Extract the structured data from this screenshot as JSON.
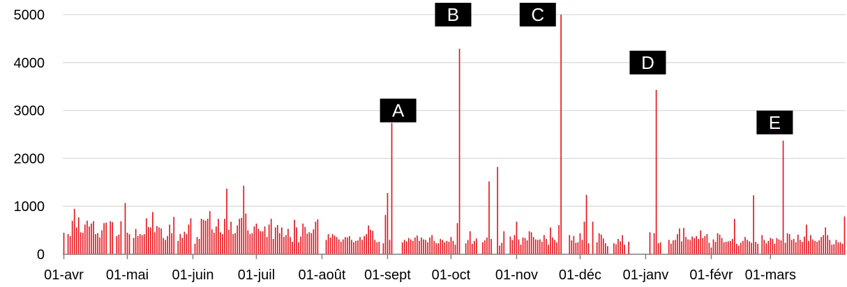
{
  "chart_data": {
    "type": "bar",
    "title": "",
    "xlabel": "",
    "ylabel": "",
    "ylim": [
      0,
      5000
    ],
    "y_ticks": [
      0,
      1000,
      2000,
      3000,
      4000,
      5000
    ],
    "x_tick_labels": [
      "01-avr",
      "01-mai",
      "01-juin",
      "01-juil",
      "01-août",
      "01-sept",
      "01-oct",
      "01-nov",
      "01-déc",
      "01-janv",
      "01-févr",
      "01-mars"
    ],
    "x_tick_day_index": [
      0,
      30,
      61,
      91,
      122,
      153,
      183,
      214,
      244,
      275,
      306,
      334
    ],
    "grid": "horizontal",
    "bar_color": "#e8141b",
    "annotation_color": "#000000",
    "values": [
      450,
      0,
      420,
      380,
      700,
      950,
      560,
      770,
      460,
      450,
      620,
      700,
      580,
      640,
      690,
      420,
      440,
      350,
      500,
      650,
      660,
      0,
      690,
      670,
      0,
      380,
      410,
      690,
      0,
      1070,
      450,
      420,
      0,
      340,
      530,
      380,
      420,
      400,
      420,
      750,
      570,
      560,
      880,
      460,
      590,
      560,
      540,
      340,
      300,
      380,
      620,
      440,
      780,
      0,
      280,
      420,
      340,
      470,
      420,
      620,
      750,
      0,
      220,
      360,
      320,
      740,
      720,
      700,
      740,
      900,
      520,
      450,
      580,
      740,
      460,
      420,
      740,
      1370,
      510,
      680,
      420,
      440,
      600,
      740,
      760,
      1430,
      850,
      500,
      420,
      440,
      580,
      640,
      530,
      480,
      480,
      580,
      360,
      620,
      740,
      320,
      560,
      610,
      440,
      560,
      360,
      400,
      530,
      360,
      260,
      720,
      560,
      250,
      370,
      640,
      570,
      430,
      460,
      440,
      520,
      680,
      730,
      0,
      0,
      0,
      300,
      420,
      350,
      420,
      390,
      360,
      310,
      260,
      310,
      360,
      350,
      380,
      300,
      250,
      280,
      290,
      360,
      300,
      380,
      420,
      600,
      510,
      490,
      300,
      250,
      260,
      0,
      230,
      820,
      1280,
      300,
      2740,
      0,
      0,
      0,
      0,
      250,
      300,
      270,
      340,
      310,
      280,
      350,
      390,
      280,
      350,
      310,
      300,
      250,
      350,
      400,
      280,
      230,
      230,
      320,
      300,
      250,
      280,
      260,
      360,
      280,
      200,
      650,
      4290,
      0,
      0,
      230,
      300,
      480,
      220,
      280,
      330,
      0,
      0,
      250,
      290,
      350,
      1520,
      320,
      0,
      0,
      1820,
      180,
      240,
      480,
      0,
      0,
      370,
      300,
      400,
      680,
      310,
      200,
      350,
      340,
      290,
      480,
      460,
      360,
      310,
      300,
      310,
      260,
      400,
      320,
      200,
      560,
      350,
      300,
      250,
      610,
      5000,
      0,
      0,
      0,
      400,
      290,
      380,
      240,
      250,
      440,
      300,
      680,
      1240,
      230,
      0,
      680,
      0,
      250,
      440,
      410,
      330,
      230,
      170,
      0,
      0,
      230,
      210,
      320,
      270,
      400,
      200,
      0,
      260,
      0,
      0,
      0,
      0,
      0,
      0,
      0,
      0,
      0,
      460,
      0,
      440,
      3430,
      230,
      250,
      0,
      0,
      0,
      300,
      220,
      290,
      300,
      420,
      540,
      270,
      550,
      360,
      310,
      300,
      370,
      340,
      380,
      320,
      500,
      340,
      380,
      420,
      240,
      140,
      310,
      260,
      440,
      410,
      340,
      250,
      260,
      270,
      280,
      320,
      740,
      220,
      180,
      240,
      280,
      360,
      300,
      270,
      240,
      1230,
      260,
      220,
      0,
      400,
      300,
      230,
      280,
      340,
      320,
      220,
      340,
      310,
      290,
      2370,
      240,
      440,
      420,
      300,
      320,
      250,
      410,
      300,
      260,
      370,
      620,
      280,
      400,
      310,
      280,
      260,
      290,
      360,
      400,
      560,
      400,
      300,
      200,
      210,
      300,
      250,
      250,
      220,
      790
    ]
  },
  "annotations": [
    {
      "label": "A",
      "day_index": 158,
      "value": 3000
    },
    {
      "label": "B",
      "day_index": 184,
      "value": 5000
    },
    {
      "label": "C",
      "day_index": 224,
      "value": 5000
    },
    {
      "label": "D",
      "day_index": 276,
      "value": 4000
    },
    {
      "label": "E",
      "day_index": 336,
      "value": 2750
    }
  ]
}
